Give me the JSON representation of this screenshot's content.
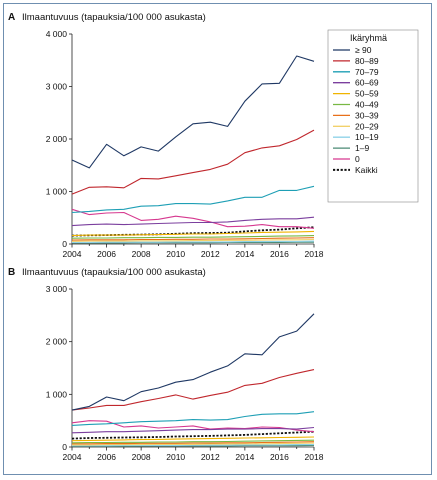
{
  "legend": {
    "title": "Ikäryhmä",
    "placement": "top-right"
  },
  "chart_data": [
    {
      "panel": "A",
      "type": "line",
      "ylabel": "Ilmaantuvuus (tapauksia/100 000 asukasta)",
      "ylim": [
        0,
        4000
      ],
      "yticks": [
        0,
        1000,
        2000,
        3000,
        4000
      ],
      "ytick_labels": [
        "0",
        "1 000",
        "2 000",
        "3 000",
        "4 000"
      ],
      "xlim": [
        2004,
        2018
      ],
      "xticks": [
        2004,
        2006,
        2008,
        2010,
        2012,
        2014,
        2016,
        2018
      ],
      "xtick_labels": [
        "2004",
        "2006",
        "2008",
        "2010",
        "2012",
        "2014",
        "2016",
        "2018"
      ],
      "x": [
        2004,
        2005,
        2006,
        2007,
        2008,
        2009,
        2010,
        2011,
        2012,
        2013,
        2014,
        2015,
        2016,
        2017,
        2018
      ],
      "series": [
        {
          "name": "≥ 90",
          "color": "#1f3864",
          "dashed": false,
          "values": [
            1600,
            1450,
            1900,
            1680,
            1850,
            1770,
            2040,
            2290,
            2320,
            2240,
            2720,
            3050,
            3060,
            3580,
            3480
          ]
        },
        {
          "name": "80–89",
          "color": "#c0272d",
          "dashed": false,
          "values": [
            950,
            1080,
            1090,
            1070,
            1250,
            1240,
            1300,
            1360,
            1420,
            1520,
            1740,
            1830,
            1870,
            1990,
            2170
          ]
        },
        {
          "name": "70–79",
          "color": "#1e9fb5",
          "dashed": false,
          "values": [
            600,
            620,
            650,
            660,
            720,
            730,
            770,
            770,
            760,
            820,
            890,
            890,
            1020,
            1020,
            1100
          ]
        },
        {
          "name": "60–69",
          "color": "#7b3f9e",
          "dashed": false,
          "values": [
            350,
            370,
            380,
            370,
            380,
            390,
            400,
            410,
            410,
            420,
            450,
            470,
            480,
            480,
            510
          ]
        },
        {
          "name": "50–59",
          "color": "#f0b400",
          "dashed": false,
          "values": [
            160,
            170,
            170,
            170,
            175,
            180,
            185,
            190,
            190,
            200,
            210,
            220,
            225,
            230,
            240
          ]
        },
        {
          "name": "40–49",
          "color": "#78b843",
          "dashed": false,
          "values": [
            110,
            115,
            115,
            120,
            120,
            125,
            125,
            130,
            130,
            135,
            140,
            145,
            150,
            155,
            160
          ]
        },
        {
          "name": "30–39",
          "color": "#e8701a",
          "dashed": false,
          "values": [
            75,
            80,
            80,
            80,
            85,
            85,
            90,
            90,
            95,
            95,
            100,
            105,
            110,
            115,
            120
          ]
        },
        {
          "name": "20–29",
          "color": "#f2d16b",
          "dashed": false,
          "values": [
            50,
            55,
            55,
            55,
            60,
            60,
            60,
            65,
            65,
            70,
            70,
            75,
            80,
            80,
            85
          ]
        },
        {
          "name": "10–19",
          "color": "#8fd3e8",
          "dashed": false,
          "values": [
            30,
            30,
            35,
            35,
            35,
            35,
            40,
            40,
            40,
            40,
            45,
            45,
            50,
            50,
            55
          ]
        },
        {
          "name": "1–9",
          "color": "#4a8a74",
          "dashed": false,
          "values": [
            20,
            20,
            20,
            20,
            25,
            25,
            25,
            25,
            25,
            30,
            30,
            30,
            30,
            35,
            35
          ]
        },
        {
          "name": "0",
          "color": "#d6388f",
          "dashed": false,
          "values": [
            660,
            560,
            590,
            600,
            450,
            470,
            530,
            490,
            420,
            330,
            340,
            370,
            330,
            330,
            300
          ]
        },
        {
          "name": "Kaikki",
          "color": "#111111",
          "dashed": true,
          "values": [
            160,
            165,
            170,
            175,
            180,
            185,
            195,
            205,
            210,
            215,
            240,
            260,
            275,
            300,
            320
          ]
        }
      ]
    },
    {
      "panel": "B",
      "type": "line",
      "ylabel": "Ilmaantuvuus (tapauksia/100 000 asukasta)",
      "ylim": [
        0,
        3000
      ],
      "yticks": [
        0,
        1000,
        2000,
        3000
      ],
      "ytick_labels": [
        "0",
        "1 000",
        "2 000",
        "3 000"
      ],
      "xlim": [
        2004,
        2018
      ],
      "xticks": [
        2004,
        2006,
        2008,
        2010,
        2012,
        2014,
        2016,
        2018
      ],
      "xtick_labels": [
        "2004",
        "2006",
        "2008",
        "2010",
        "2012",
        "2014",
        "2016",
        "2018"
      ],
      "x": [
        2004,
        2005,
        2006,
        2007,
        2008,
        2009,
        2010,
        2011,
        2012,
        2013,
        2014,
        2015,
        2016,
        2017,
        2018
      ],
      "series": [
        {
          "name": "≥ 90",
          "color": "#1f3864",
          "dashed": false,
          "values": [
            700,
            770,
            950,
            880,
            1050,
            1120,
            1230,
            1280,
            1420,
            1540,
            1770,
            1750,
            2090,
            2200,
            2530
          ]
        },
        {
          "name": "80–89",
          "color": "#c0272d",
          "dashed": false,
          "values": [
            700,
            740,
            790,
            790,
            860,
            920,
            990,
            910,
            980,
            1040,
            1170,
            1210,
            1320,
            1400,
            1470
          ]
        },
        {
          "name": "70–79",
          "color": "#1e9fb5",
          "dashed": false,
          "values": [
            410,
            430,
            440,
            460,
            480,
            490,
            500,
            520,
            510,
            520,
            580,
            620,
            630,
            630,
            670
          ]
        },
        {
          "name": "60–69",
          "color": "#7b3f9e",
          "dashed": false,
          "values": [
            270,
            280,
            290,
            290,
            300,
            310,
            320,
            330,
            330,
            340,
            340,
            350,
            350,
            340,
            370
          ]
        },
        {
          "name": "50–59",
          "color": "#f0b400",
          "dashed": false,
          "values": [
            120,
            125,
            130,
            135,
            140,
            145,
            150,
            155,
            160,
            165,
            170,
            175,
            180,
            185,
            190
          ]
        },
        {
          "name": "40–49",
          "color": "#78b843",
          "dashed": false,
          "values": [
            80,
            85,
            85,
            90,
            90,
            95,
            95,
            100,
            100,
            105,
            110,
            115,
            120,
            125,
            130
          ]
        },
        {
          "name": "30–39",
          "color": "#e8701a",
          "dashed": false,
          "values": [
            60,
            60,
            65,
            65,
            70,
            70,
            70,
            75,
            75,
            80,
            80,
            85,
            90,
            95,
            100
          ]
        },
        {
          "name": "20–29",
          "color": "#f2d16b",
          "dashed": false,
          "values": [
            40,
            40,
            45,
            45,
            45,
            50,
            50,
            50,
            55,
            55,
            60,
            60,
            65,
            70,
            75
          ]
        },
        {
          "name": "10–19",
          "color": "#8fd3e8",
          "dashed": false,
          "values": [
            25,
            25,
            25,
            30,
            30,
            30,
            30,
            35,
            35,
            35,
            40,
            40,
            40,
            45,
            45
          ]
        },
        {
          "name": "1–9",
          "color": "#4a8a74",
          "dashed": false,
          "values": [
            15,
            15,
            15,
            15,
            20,
            20,
            20,
            20,
            20,
            20,
            25,
            25,
            25,
            25,
            30
          ]
        },
        {
          "name": "0",
          "color": "#d6388f",
          "dashed": false,
          "values": [
            460,
            500,
            490,
            380,
            400,
            360,
            380,
            400,
            340,
            360,
            350,
            380,
            370,
            320,
            290
          ]
        },
        {
          "name": "Kaikki",
          "color": "#111111",
          "dashed": true,
          "values": [
            160,
            170,
            175,
            180,
            185,
            190,
            200,
            205,
            210,
            220,
            230,
            245,
            260,
            275,
            290
          ]
        }
      ]
    }
  ]
}
